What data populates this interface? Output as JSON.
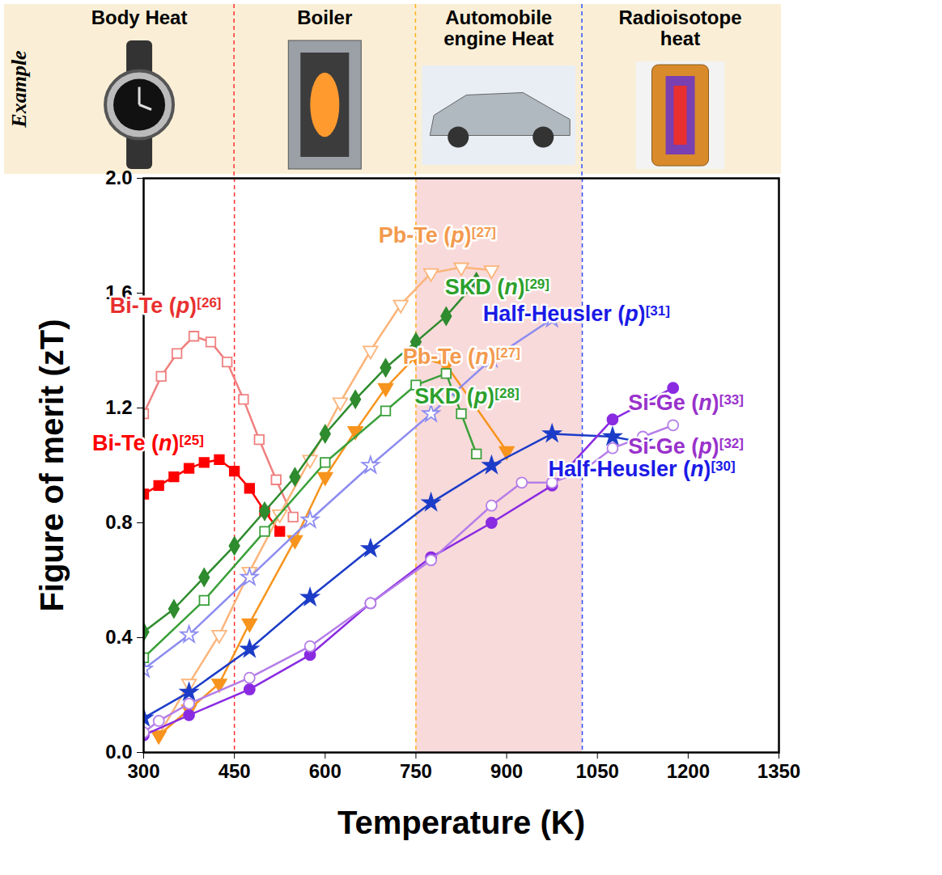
{
  "chart_data": {
    "type": "line",
    "x_label": "Temperature (K)",
    "y_label": "Figure of merit (zT)",
    "xlim": [
      300,
      1350
    ],
    "xticks": [
      300,
      450,
      600,
      750,
      900,
      1050,
      1200,
      1350
    ],
    "ylim": [
      0,
      2.0
    ],
    "yticks": [
      {
        "value": 0,
        "label": "0.0"
      },
      {
        "value": 0.4,
        "label": "0.4"
      },
      {
        "value": 0.8,
        "label": "0.8"
      },
      {
        "value": 1.2,
        "label": "1.2"
      },
      {
        "value": 1.6,
        "label": "1.6"
      },
      {
        "value": 2.0,
        "label": "2.0"
      }
    ],
    "annotations": {
      "band_label": "Example",
      "heat_sources": [
        "Body Heat",
        "Boiler",
        "Automobile engine Heat",
        "Radioisotope heat"
      ]
    },
    "reference_lines": [
      {
        "x": 450,
        "color": "#ff3030"
      },
      {
        "x": 750,
        "color": "#ffb020"
      },
      {
        "x": 1025,
        "color": "#3050ff"
      }
    ],
    "shaded_range": {
      "x": [
        750,
        1025
      ],
      "color": "#f9dada"
    },
    "series": [
      {
        "name": "Bi-Te (p)[26]",
        "color": "#f08080",
        "marker": "square-open",
        "x": [
          300,
          329,
          355,
          383,
          411,
          438,
          465,
          491,
          519,
          547
        ],
        "values": [
          1.18,
          1.31,
          1.39,
          1.45,
          1.43,
          1.36,
          1.23,
          1.09,
          0.95,
          0.82
        ]
      },
      {
        "name": "Bi-Te (n)[25]",
        "color": "#ff0000",
        "marker": "square",
        "x": [
          300,
          325,
          350,
          375,
          400,
          425,
          450,
          475,
          500,
          525
        ],
        "values": [
          0.9,
          0.93,
          0.96,
          0.99,
          1.01,
          1.02,
          0.98,
          0.92,
          0.84,
          0.77
        ]
      },
      {
        "name": "Pb-Te (p)[27]",
        "color": "#fbb57b",
        "marker": "triangle-down-open",
        "x": [
          325,
          375,
          425,
          475,
          525,
          575,
          625,
          675,
          725,
          775,
          825,
          875
        ],
        "values": [
          0.06,
          0.24,
          0.41,
          0.63,
          0.83,
          1.02,
          1.22,
          1.4,
          1.56,
          1.67,
          1.69,
          1.68
        ]
      },
      {
        "name": "Pb-Te (n)[27]",
        "color": "#f7941d",
        "marker": "triangle-down",
        "x": [
          325,
          375,
          425,
          475,
          550,
          600,
          650,
          700,
          750,
          800,
          900
        ],
        "values": [
          0.06,
          0.15,
          0.24,
          0.45,
          0.74,
          0.96,
          1.12,
          1.27,
          1.38,
          1.35,
          1.05
        ]
      },
      {
        "name": "SKD (n)[29]",
        "color": "#2e8b2e",
        "marker": "diamond",
        "x": [
          300,
          350,
          400,
          450,
          500,
          550,
          600,
          650,
          700,
          750,
          800,
          850
        ],
        "values": [
          0.42,
          0.5,
          0.61,
          0.72,
          0.84,
          0.96,
          1.11,
          1.23,
          1.34,
          1.43,
          1.52,
          1.64
        ]
      },
      {
        "name": "SKD (p)[28]",
        "color": "#3aa03a",
        "marker": "square-open",
        "x": [
          300,
          400,
          500,
          600,
          700,
          750,
          800,
          825,
          850
        ],
        "values": [
          0.33,
          0.53,
          0.77,
          1.01,
          1.19,
          1.28,
          1.32,
          1.18,
          1.04
        ]
      },
      {
        "name": "Half-Heusler (p)[31]",
        "color": "#8c8cf0",
        "marker": "star-open",
        "x": [
          300,
          375,
          475,
          575,
          675,
          775,
          875,
          975
        ],
        "values": [
          0.29,
          0.41,
          0.61,
          0.81,
          1.0,
          1.18,
          1.37,
          1.51
        ]
      },
      {
        "name": "Half-Heusler (n)[30]",
        "color": "#1c3cc8",
        "marker": "star",
        "x": [
          300,
          375,
          475,
          575,
          675,
          775,
          875,
          975,
          1075,
          1125
        ],
        "values": [
          0.12,
          0.21,
          0.36,
          0.54,
          0.71,
          0.87,
          1.0,
          1.11,
          1.1,
          1.08
        ]
      },
      {
        "name": "Si-Ge (n)[33]",
        "color": "#8a2be2",
        "marker": "circle",
        "x": [
          300,
          375,
          475,
          575,
          675,
          775,
          875,
          975,
          1075,
          1175
        ],
        "values": [
          0.06,
          0.13,
          0.22,
          0.34,
          0.52,
          0.68,
          0.8,
          0.93,
          1.16,
          1.27
        ]
      },
      {
        "name": "Si-Ge (p)[32]",
        "color": "#b57ee8",
        "marker": "circle-open",
        "x": [
          300,
          325,
          375,
          475,
          575,
          675,
          775,
          875,
          925,
          975,
          1025,
          1075,
          1125,
          1175
        ],
        "values": [
          0.07,
          0.11,
          0.17,
          0.26,
          0.37,
          0.52,
          0.67,
          0.86,
          0.94,
          0.94,
          0.98,
          1.06,
          1.1,
          1.14
        ]
      }
    ]
  }
}
